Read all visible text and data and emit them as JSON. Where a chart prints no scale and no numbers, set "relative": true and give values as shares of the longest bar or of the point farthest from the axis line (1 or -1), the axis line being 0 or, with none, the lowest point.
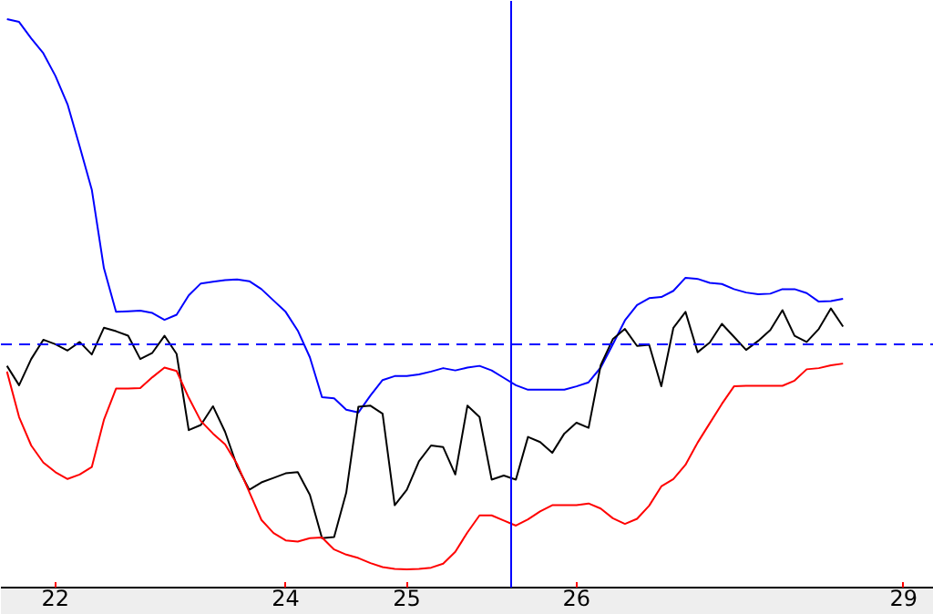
{
  "chart_data": {
    "type": "line",
    "relative": true,
    "grid": false,
    "tick_labels": "x",
    "marker": "none",
    "line_style": "solid",
    "categories": [
      null,
      null,
      null,
      null,
      "22",
      null,
      null,
      null,
      null,
      null,
      null,
      null,
      null,
      null,
      null,
      null,
      null,
      null,
      null,
      null,
      null,
      null,
      null,
      "24",
      null,
      null,
      null,
      null,
      null,
      null,
      null,
      null,
      null,
      "25",
      null,
      null,
      null,
      null,
      null,
      null,
      null,
      null,
      null,
      null,
      null,
      null,
      null,
      "26",
      null,
      null,
      null,
      null,
      null,
      null,
      null,
      null,
      null,
      null,
      null,
      null,
      null,
      null,
      null,
      null,
      null,
      null,
      null,
      null,
      null,
      null,
      null,
      null,
      null,
      null,
      "29",
      null,
      null
    ],
    "series": [
      {
        "color": "#0000ff",
        "values": [
          1.0,
          0.995,
          0.966,
          0.94,
          0.9,
          0.85,
          0.776,
          0.7,
          0.562,
          0.485,
          0.486,
          0.487,
          0.483,
          0.471,
          0.48,
          0.514,
          0.535,
          0.538,
          0.541,
          0.542,
          0.539,
          0.525,
          0.505,
          0.485,
          0.452,
          0.405,
          0.335,
          0.333,
          0.313,
          0.308,
          0.338,
          0.365,
          0.372,
          0.372,
          0.375,
          0.38,
          0.386,
          0.382,
          0.387,
          0.39,
          0.382,
          0.369,
          0.356,
          0.348,
          0.348,
          0.348,
          0.348,
          0.354,
          0.361,
          0.387,
          0.428,
          0.47,
          0.497,
          0.509,
          0.511,
          0.522,
          0.545,
          0.543,
          0.536,
          0.534,
          0.525,
          0.519,
          0.516,
          0.517,
          0.525,
          0.525,
          0.518,
          0.503,
          0.504,
          0.508,
          null,
          null,
          null,
          null,
          null,
          null,
          null
        ]
      },
      {
        "color": "#000000",
        "values": [
          0.39,
          0.356,
          0.402,
          0.436,
          0.428,
          0.417,
          0.432,
          0.41,
          0.457,
          0.451,
          0.443,
          0.402,
          0.413,
          0.443,
          0.411,
          0.277,
          0.286,
          0.319,
          0.274,
          0.213,
          0.172,
          0.185,
          0.193,
          0.201,
          0.203,
          0.163,
          0.087,
          0.089,
          0.167,
          0.318,
          0.32,
          0.306,
          0.145,
          0.172,
          0.222,
          0.25,
          0.247,
          0.199,
          0.32,
          0.3,
          0.19,
          0.197,
          0.19,
          0.265,
          0.256,
          0.237,
          0.271,
          0.29,
          0.281,
          0.391,
          0.437,
          0.455,
          0.425,
          0.427,
          0.354,
          0.457,
          0.485,
          0.414,
          0.431,
          0.464,
          0.441,
          0.418,
          0.434,
          0.453,
          0.488,
          0.443,
          0.432,
          0.455,
          0.491,
          0.459,
          null,
          null,
          null,
          null,
          null,
          null,
          null
        ]
      },
      {
        "color": "#ff0000",
        "values": [
          0.38,
          0.3,
          0.25,
          0.22,
          0.203,
          0.191,
          0.199,
          0.212,
          0.295,
          0.35,
          0.35,
          0.351,
          0.37,
          0.387,
          0.381,
          0.334,
          0.293,
          0.271,
          0.252,
          0.217,
          0.168,
          0.119,
          0.096,
          0.083,
          0.081,
          0.087,
          0.088,
          0.067,
          0.058,
          0.052,
          0.043,
          0.036,
          0.033,
          0.032,
          0.033,
          0.035,
          0.042,
          0.063,
          0.097,
          0.127,
          0.127,
          0.118,
          0.109,
          0.12,
          0.134,
          0.145,
          0.145,
          0.145,
          0.148,
          0.139,
          0.122,
          0.112,
          0.121,
          0.144,
          0.178,
          0.191,
          0.216,
          0.255,
          0.289,
          0.323,
          0.354,
          0.355,
          0.355,
          0.355,
          0.355,
          0.364,
          0.384,
          0.386,
          0.391,
          0.394,
          null,
          null,
          null,
          null,
          null,
          null,
          null
        ]
      }
    ],
    "ref_lines": [
      {
        "axis": "y",
        "value": 0.428,
        "color": "#0000ff",
        "line_style": "dashed"
      }
    ]
  }
}
